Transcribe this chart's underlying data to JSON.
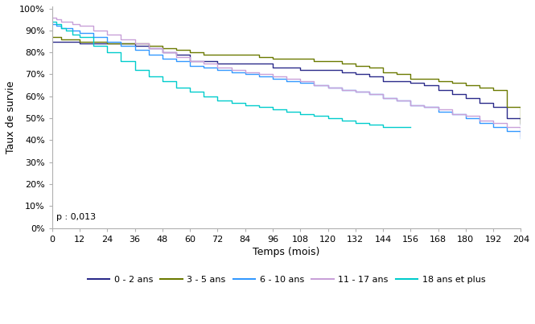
{
  "xlabel": "Temps (mois)",
  "ylabel": "Taux de survie",
  "p_label": "p : 0,013",
  "xlim": [
    0,
    204
  ],
  "ylim": [
    0.0,
    1.01
  ],
  "xticks": [
    0,
    12,
    24,
    36,
    48,
    60,
    72,
    84,
    96,
    108,
    120,
    132,
    144,
    156,
    168,
    180,
    192,
    204
  ],
  "yticks": [
    0.0,
    0.1,
    0.2,
    0.3,
    0.4,
    0.5,
    0.6,
    0.7,
    0.8,
    0.9,
    1.0
  ],
  "background_color": "#ffffff",
  "legend": [
    {
      "label": "0 - 2 ans",
      "color": "#2b2b8a"
    },
    {
      "label": "3 - 5 ans",
      "color": "#6b7a00"
    },
    {
      "label": "6 - 10 ans",
      "color": "#3399ff"
    },
    {
      "label": "11 - 17 ans",
      "color": "#c8a0d8"
    },
    {
      "label": "18 ans et plus",
      "color": "#00cccc"
    }
  ],
  "series": [
    {
      "name": "0 - 2 ans",
      "color": "#2b2b8a",
      "x": [
        0,
        2,
        4,
        6,
        8,
        12,
        18,
        24,
        30,
        36,
        42,
        48,
        54,
        60,
        66,
        72,
        78,
        84,
        90,
        96,
        102,
        108,
        114,
        120,
        126,
        132,
        138,
        144,
        150,
        156,
        162,
        168,
        174,
        180,
        186,
        192,
        198,
        204
      ],
      "y": [
        0.85,
        0.85,
        0.85,
        0.85,
        0.85,
        0.84,
        0.84,
        0.84,
        0.84,
        0.83,
        0.82,
        0.8,
        0.79,
        0.76,
        0.76,
        0.75,
        0.75,
        0.75,
        0.75,
        0.73,
        0.73,
        0.72,
        0.72,
        0.72,
        0.71,
        0.7,
        0.69,
        0.67,
        0.67,
        0.66,
        0.65,
        0.63,
        0.61,
        0.59,
        0.57,
        0.55,
        0.5,
        0.47
      ]
    },
    {
      "name": "3 - 5 ans",
      "color": "#6b7a00",
      "x": [
        0,
        2,
        4,
        6,
        9,
        12,
        18,
        24,
        30,
        36,
        42,
        48,
        54,
        60,
        66,
        72,
        78,
        84,
        90,
        96,
        102,
        108,
        114,
        120,
        126,
        132,
        138,
        144,
        150,
        156,
        162,
        168,
        174,
        180,
        186,
        192,
        198,
        204
      ],
      "y": [
        0.87,
        0.87,
        0.86,
        0.86,
        0.86,
        0.85,
        0.85,
        0.84,
        0.84,
        0.84,
        0.83,
        0.82,
        0.81,
        0.8,
        0.79,
        0.79,
        0.79,
        0.79,
        0.78,
        0.77,
        0.77,
        0.77,
        0.76,
        0.76,
        0.75,
        0.74,
        0.73,
        0.71,
        0.7,
        0.68,
        0.68,
        0.67,
        0.66,
        0.65,
        0.64,
        0.63,
        0.55,
        0.48
      ]
    },
    {
      "name": "6 - 10 ans",
      "color": "#3399ff",
      "x": [
        0,
        2,
        4,
        6,
        9,
        12,
        18,
        24,
        30,
        36,
        42,
        48,
        54,
        60,
        66,
        72,
        78,
        84,
        90,
        96,
        102,
        108,
        114,
        120,
        126,
        132,
        138,
        144,
        150,
        156,
        162,
        168,
        174,
        180,
        186,
        192,
        198,
        204
      ],
      "y": [
        0.93,
        0.92,
        0.91,
        0.91,
        0.9,
        0.89,
        0.87,
        0.85,
        0.83,
        0.81,
        0.79,
        0.77,
        0.76,
        0.74,
        0.73,
        0.72,
        0.71,
        0.7,
        0.69,
        0.68,
        0.67,
        0.66,
        0.65,
        0.64,
        0.63,
        0.62,
        0.61,
        0.59,
        0.58,
        0.56,
        0.55,
        0.53,
        0.52,
        0.5,
        0.48,
        0.46,
        0.44,
        0.41
      ]
    },
    {
      "name": "11 - 17 ans",
      "color": "#c8a0d8",
      "x": [
        0,
        2,
        4,
        6,
        9,
        12,
        18,
        24,
        30,
        36,
        42,
        48,
        54,
        60,
        66,
        72,
        78,
        84,
        90,
        96,
        102,
        108,
        114,
        120,
        126,
        132,
        138,
        144,
        150,
        156,
        162,
        168,
        174,
        180,
        186,
        192,
        198,
        204
      ],
      "y": [
        0.96,
        0.95,
        0.94,
        0.94,
        0.93,
        0.92,
        0.9,
        0.88,
        0.86,
        0.84,
        0.82,
        0.8,
        0.78,
        0.76,
        0.75,
        0.73,
        0.72,
        0.71,
        0.7,
        0.69,
        0.68,
        0.67,
        0.65,
        0.64,
        0.63,
        0.62,
        0.61,
        0.59,
        0.58,
        0.56,
        0.55,
        0.54,
        0.52,
        0.51,
        0.49,
        0.48,
        0.46,
        0.42
      ]
    },
    {
      "name": "18 ans et plus",
      "color": "#00cccc",
      "x": [
        0,
        2,
        4,
        6,
        9,
        12,
        18,
        24,
        30,
        36,
        42,
        48,
        54,
        60,
        66,
        72,
        78,
        84,
        90,
        96,
        102,
        108,
        114,
        120,
        126,
        132,
        138,
        144,
        150,
        156
      ],
      "y": [
        0.94,
        0.93,
        0.91,
        0.9,
        0.88,
        0.87,
        0.83,
        0.8,
        0.76,
        0.72,
        0.69,
        0.67,
        0.64,
        0.62,
        0.6,
        0.58,
        0.57,
        0.56,
        0.55,
        0.54,
        0.53,
        0.52,
        0.51,
        0.5,
        0.49,
        0.48,
        0.47,
        0.46,
        0.46,
        0.46
      ]
    }
  ]
}
